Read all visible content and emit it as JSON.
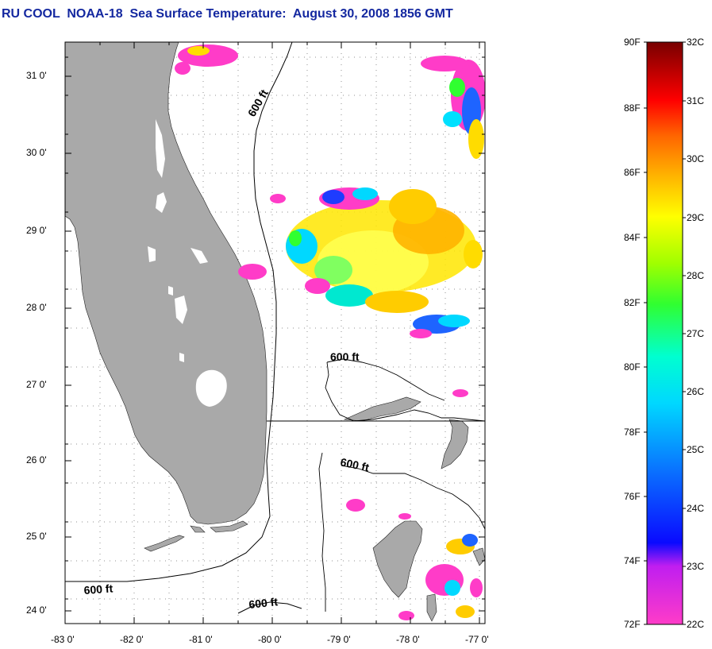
{
  "title": "RU COOL  NOAA-18  Sea Surface Temperature:  August 30, 2008 1856 GMT",
  "map": {
    "lon_range": [
      -83,
      -76.65
    ],
    "lat_range": [
      23.8,
      31.45
    ],
    "y_tick_labels": [
      "31 0'",
      "30 0'",
      "29 0'",
      "28 0'",
      "27 0'",
      "26 0'",
      "25 0'",
      "24 0'"
    ],
    "x_tick_labels": [
      "-83 0'",
      "-82 0'",
      "-81 0'",
      "-80 0'",
      "-79 0'",
      "-78 0'",
      "-77 0'"
    ],
    "contour_labels": [
      "600 ft",
      "600 ft",
      "600 ft",
      "600 ft",
      "600 ft"
    ],
    "land_color": "#a9a9a9"
  },
  "colorbar": {
    "fahrenheit_labels": [
      "90F",
      "88F",
      "86F",
      "84F",
      "82F",
      "80F",
      "78F",
      "76F",
      "74F",
      "72F"
    ],
    "celsius_labels": [
      "32C",
      "31C",
      "30C",
      "29C",
      "28C",
      "27C",
      "26C",
      "25C",
      "24C",
      "23C",
      "22C"
    ]
  }
}
